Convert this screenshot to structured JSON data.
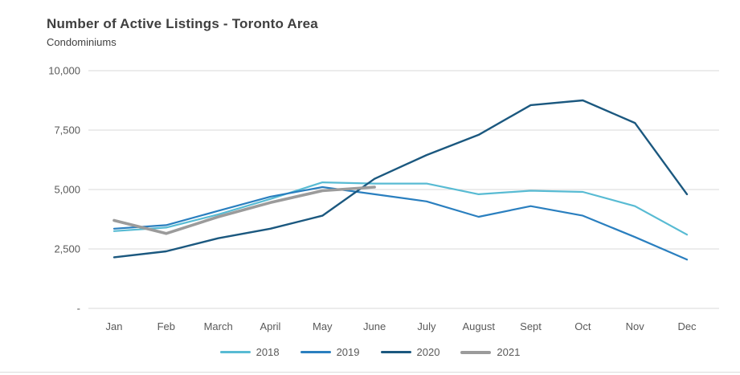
{
  "chart": {
    "title": "Number of Active Listings - Toronto Area",
    "subtitle": "Condominiums"
  },
  "chart_data": {
    "type": "line",
    "title": "Number of Active Listings - Toronto Area",
    "subtitle": "Condominiums",
    "categories": [
      "Jan",
      "Feb",
      "March",
      "April",
      "May",
      "June",
      "July",
      "August",
      "Sept",
      "Oct",
      "Nov",
      "Dec"
    ],
    "series": [
      {
        "name": "2018",
        "color": "#58bbd3",
        "line_width": 2.2,
        "values": [
          3250,
          3400,
          3950,
          4600,
          5300,
          5250,
          5250,
          4800,
          4950,
          4900,
          4300,
          3100
        ]
      },
      {
        "name": "2019",
        "color": "#2a7fbf",
        "line_width": 2.2,
        "values": [
          3350,
          3500,
          4100,
          4700,
          5100,
          4800,
          4500,
          3850,
          4300,
          3900,
          3000,
          2050
        ]
      },
      {
        "name": "2020",
        "color": "#1b587f",
        "line_width": 2.4,
        "values": [
          2150,
          2400,
          2950,
          3350,
          3900,
          5450,
          6450,
          7300,
          8550,
          8750,
          7800,
          4800
        ]
      },
      {
        "name": "2021",
        "color": "#9b9b9b",
        "line_width": 3.6,
        "values": [
          3700,
          3150,
          3850,
          4450,
          4950,
          5100
        ]
      }
    ],
    "ylim": [
      0,
      10000
    ],
    "yticks": [
      {
        "label": "10,000",
        "value": 10000
      },
      {
        "label": "7,500",
        "value": 7500
      },
      {
        "label": "5,000",
        "value": 5000
      },
      {
        "label": "2,500",
        "value": 2500
      },
      {
        "label": "-",
        "value": 0
      }
    ],
    "grid": true,
    "legend_position": "bottom"
  },
  "colors": {
    "grid": "#d9d9d9",
    "axis_text": "#595959",
    "title_text": "#3f3f3f",
    "divider": "#dcdcdc"
  }
}
